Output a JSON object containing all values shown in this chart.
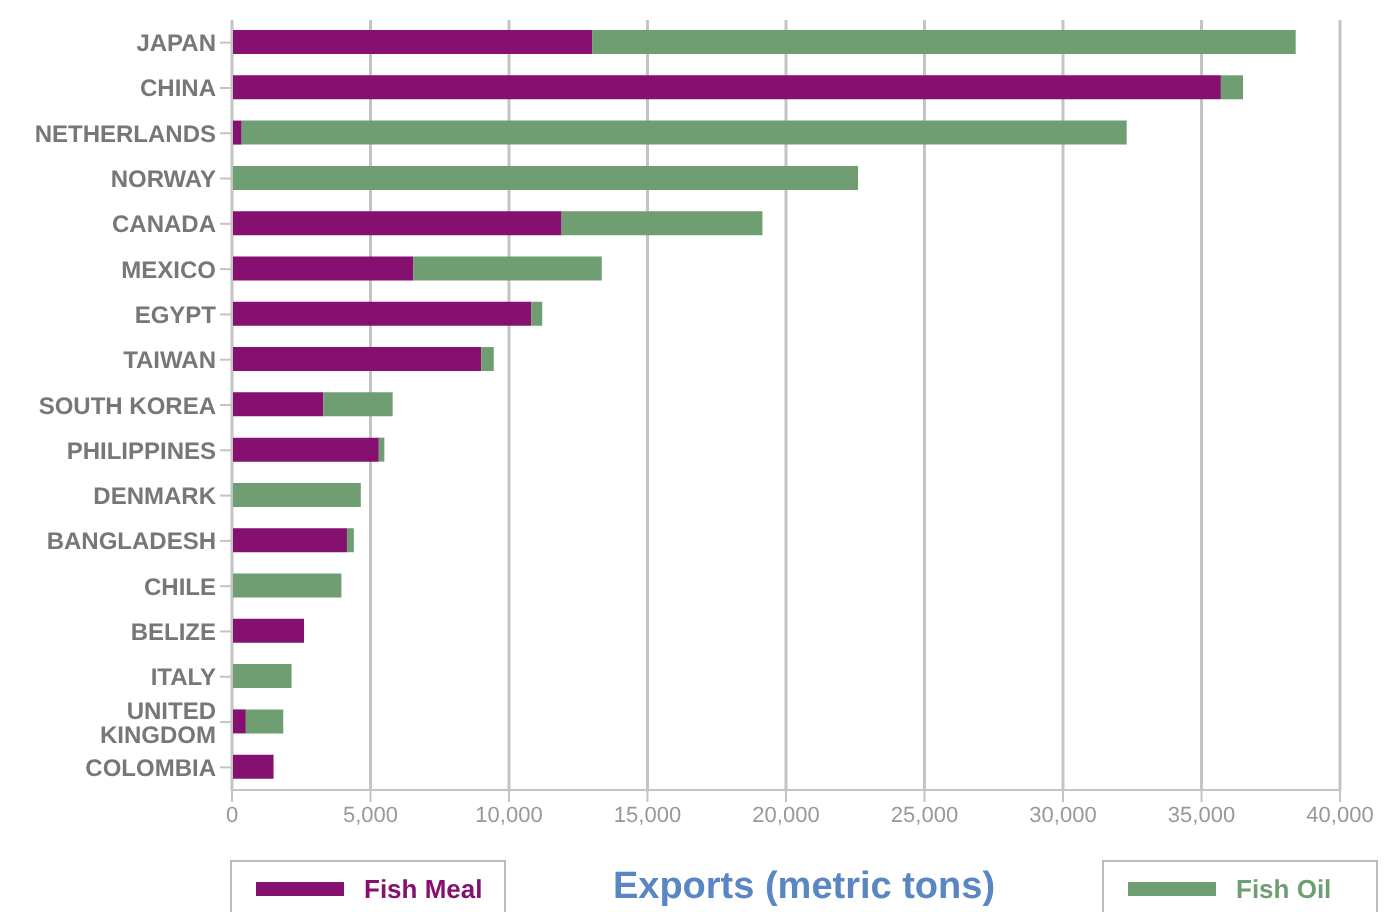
{
  "chart_data": {
    "type": "bar",
    "orientation": "horizontal",
    "stacked": true,
    "xlabel": "Exports (metric tons)",
    "categories": [
      "JAPAN",
      "CHINA",
      "NETHERLANDS",
      "NORWAY",
      "CANADA",
      "MEXICO",
      "EGYPT",
      "TAIWAN",
      "SOUTH KOREA",
      "PHILIPPINES",
      "DENMARK",
      "BANGLADESH",
      "CHILE",
      "BELIZE",
      "ITALY",
      "UNITED KINGDOM",
      "COLOMBIA"
    ],
    "series": [
      {
        "name": "Fish Meal",
        "color": "#86106f",
        "values": [
          13000,
          35700,
          350,
          0,
          11900,
          6550,
          10800,
          9000,
          3300,
          5300,
          0,
          4150,
          0,
          2600,
          0,
          500,
          1500
        ]
      },
      {
        "name": "Fish Oil",
        "color": "#6f9e73",
        "values": [
          25400,
          800,
          31950,
          22600,
          7250,
          6800,
          400,
          450,
          2500,
          200,
          4650,
          250,
          3950,
          0,
          2150,
          1350,
          0
        ]
      }
    ],
    "xlim": [
      0,
      40000
    ],
    "xticks": [
      {
        "value": 0,
        "label": "0"
      },
      {
        "value": 5000,
        "label": "5,000"
      },
      {
        "value": 10000,
        "label": "10,000"
      },
      {
        "value": 15000,
        "label": "15,000"
      },
      {
        "value": 20000,
        "label": "20,000"
      },
      {
        "value": 25000,
        "label": "25,000"
      },
      {
        "value": 30000,
        "label": "30,000"
      },
      {
        "value": 35000,
        "label": "35,000"
      },
      {
        "value": 40000,
        "label": "40,000"
      }
    ],
    "grid": "x",
    "legend": "bottom"
  }
}
